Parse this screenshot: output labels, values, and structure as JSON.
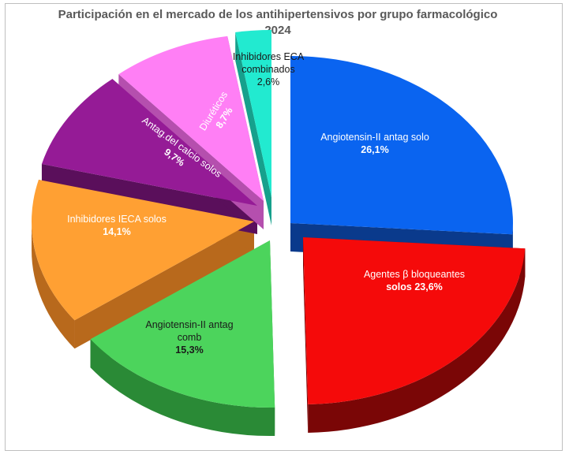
{
  "chart_data": {
    "type": "pie",
    "title": "Participación en el mercado de los antihipertensivos por grupo farmacológico",
    "subtitle": "2024",
    "slices": [
      {
        "label": "Angiotensin-II antag solo",
        "label_lines": [
          "Angiotensin-II antag solo"
        ],
        "value": 26.1,
        "value_label": "26,1%",
        "color": "#0a64f0",
        "side_color": "#0a3a8c"
      },
      {
        "label": "Agentes β bloqueantes solos",
        "label_lines": [
          "Agentes β bloqueantes",
          "solos"
        ],
        "value": 23.6,
        "value_label": "23,6%",
        "color": "#f50a0a",
        "side_color": "#7a0606"
      },
      {
        "label": "Angiotensin-II antag comb",
        "label_lines": [
          "Angiotensin-II antag",
          "comb"
        ],
        "value": 15.3,
        "value_label": "15,3%",
        "color": "#4cd45c",
        "side_color": "#2a8a36"
      },
      {
        "label": "Inhibidores IECA solos",
        "label_lines": [
          "Inhibidores IECA solos"
        ],
        "value": 14.1,
        "value_label": "14,1%",
        "color": "#ffa033",
        "side_color": "#b8691c"
      },
      {
        "label": "Antag.del calcio solos",
        "label_lines": [
          "Antag.del calcio solos"
        ],
        "value": 9.7,
        "value_label": "9,7%",
        "color": "#951b96",
        "side_color": "#5a0f5b"
      },
      {
        "label": "Diuréticos",
        "label_lines": [
          "Diuréticos"
        ],
        "value": 8.7,
        "value_label": "8,7%",
        "color": "#ff7ff5",
        "side_color": "#b54fae"
      },
      {
        "label": "Inhibidores ECA combinados",
        "label_lines": [
          "Inhibidores  ECA",
          "combinados"
        ],
        "value": 2.6,
        "value_label": "2,6%",
        "color": "#22ead0",
        "side_color": "#16a08c"
      }
    ]
  }
}
